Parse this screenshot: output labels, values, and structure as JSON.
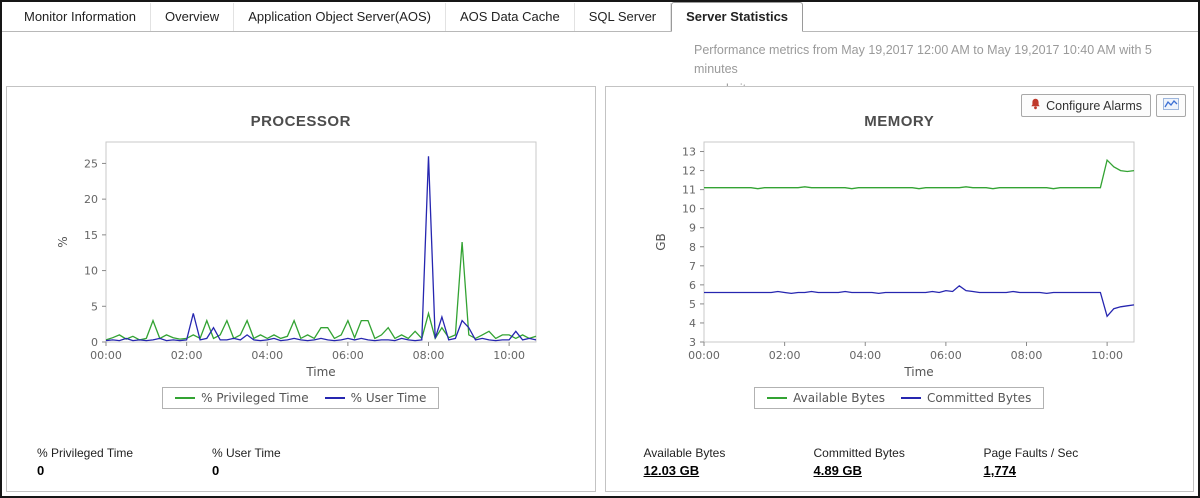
{
  "tabs": [
    {
      "label": "Monitor Information"
    },
    {
      "label": "Overview"
    },
    {
      "label": "Application Object Server(AOS)"
    },
    {
      "label": "AOS Data Cache"
    },
    {
      "label": "SQL Server"
    },
    {
      "label": "Server Statistics",
      "active": true
    }
  ],
  "header": {
    "subtitle_line1": "Performance metrics from May 19,2017 12:00 AM to May 19,2017 10:40 AM with 5 minutes",
    "subtitle_line2": "granularity"
  },
  "buttons": {
    "configure_alarms": "Configure Alarms"
  },
  "colors": {
    "series_green": "#33a333",
    "series_blue": "#2626b0",
    "alarm_icon_red": "#c0392b",
    "chart_icon_blue": "#3b6fd4"
  },
  "processor_panel": {
    "stats": [
      {
        "label": "% Privileged Time",
        "value": "0"
      },
      {
        "label": "% User Time",
        "value": "0"
      }
    ]
  },
  "memory_panel": {
    "stats": [
      {
        "label": "Available Bytes",
        "value": "12.03 GB"
      },
      {
        "label": "Committed Bytes",
        "value": "4.89 GB"
      },
      {
        "label": "Page Faults / Sec",
        "value": "1,774"
      }
    ]
  },
  "chart_data": [
    {
      "id": "processor",
      "type": "line",
      "title": "PROCESSOR",
      "xlabel": "Time",
      "ylabel": "%",
      "ylim": [
        0,
        28
      ],
      "yticks": [
        0,
        5,
        10,
        15,
        20,
        25
      ],
      "x_range": [
        0,
        640
      ],
      "xticks": [
        {
          "min": 0,
          "label": "00:00"
        },
        {
          "min": 120,
          "label": "02:00"
        },
        {
          "min": 240,
          "label": "04:00"
        },
        {
          "min": 360,
          "label": "06:00"
        },
        {
          "min": 480,
          "label": "08:00"
        },
        {
          "min": 600,
          "label": "10:00"
        }
      ],
      "x_minutes": [
        0,
        10,
        20,
        30,
        40,
        50,
        60,
        70,
        80,
        90,
        100,
        110,
        120,
        130,
        140,
        150,
        160,
        170,
        180,
        190,
        200,
        210,
        220,
        230,
        240,
        250,
        260,
        270,
        280,
        290,
        300,
        310,
        320,
        330,
        340,
        350,
        360,
        370,
        380,
        390,
        400,
        410,
        420,
        430,
        440,
        450,
        460,
        470,
        480,
        490,
        500,
        510,
        520,
        530,
        540,
        550,
        560,
        570,
        580,
        590,
        600,
        610,
        620,
        630,
        640
      ],
      "series": [
        {
          "name": "% Privileged Time",
          "color": "#33a333",
          "values": [
            0.3,
            0.6,
            1.0,
            0.4,
            0.8,
            0.3,
            0.5,
            3.0,
            0.5,
            1.0,
            0.6,
            0.4,
            0.5,
            1.0,
            0.5,
            3.0,
            0.5,
            1.0,
            3.0,
            0.5,
            1.0,
            3.0,
            0.5,
            1.0,
            0.5,
            1.0,
            0.5,
            0.8,
            3.0,
            0.5,
            1.0,
            0.5,
            2.0,
            2.0,
            0.5,
            1.0,
            3.0,
            0.6,
            3.0,
            3.0,
            0.5,
            1.0,
            2.0,
            0.5,
            1.0,
            0.5,
            1.5,
            0.5,
            4.0,
            0.5,
            2.0,
            0.6,
            1.0,
            14.0,
            1.0,
            0.5,
            1.0,
            1.5,
            0.5,
            1.0,
            1.0,
            0.5,
            1.0,
            0.5,
            0.8
          ]
        },
        {
          "name": "% User Time",
          "color": "#2626b0",
          "values": [
            0.2,
            0.3,
            0.2,
            0.5,
            0.2,
            0.3,
            0.2,
            0.3,
            0.5,
            0.2,
            0.3,
            0.2,
            0.3,
            4.0,
            0.3,
            0.5,
            2.0,
            0.3,
            0.3,
            0.5,
            0.3,
            1.0,
            0.3,
            0.2,
            0.3,
            0.5,
            0.2,
            0.3,
            0.5,
            0.3,
            0.2,
            0.3,
            0.5,
            0.3,
            0.2,
            0.3,
            0.5,
            0.3,
            0.5,
            0.3,
            0.2,
            0.3,
            0.3,
            0.2,
            0.5,
            0.3,
            0.2,
            0.3,
            26.0,
            0.5,
            3.5,
            0.3,
            0.5,
            3.0,
            2.0,
            0.3,
            0.5,
            0.3,
            0.2,
            0.3,
            0.3,
            1.5,
            0.3,
            0.5,
            0.3
          ]
        }
      ],
      "legend_position": "bottom",
      "grid": false
    },
    {
      "id": "memory",
      "type": "line",
      "title": "MEMORY",
      "xlabel": "Time",
      "ylabel": "GB",
      "ylim": [
        3,
        13.5
      ],
      "yticks": [
        3,
        4,
        5,
        6,
        7,
        8,
        9,
        10,
        11,
        12,
        13
      ],
      "x_range": [
        0,
        640
      ],
      "xticks": [
        {
          "min": 0,
          "label": "00:00"
        },
        {
          "min": 120,
          "label": "02:00"
        },
        {
          "min": 240,
          "label": "04:00"
        },
        {
          "min": 360,
          "label": "06:00"
        },
        {
          "min": 480,
          "label": "08:00"
        },
        {
          "min": 600,
          "label": "10:00"
        }
      ],
      "x_minutes": [
        0,
        10,
        20,
        30,
        40,
        50,
        60,
        70,
        80,
        90,
        100,
        110,
        120,
        130,
        140,
        150,
        160,
        170,
        180,
        190,
        200,
        210,
        220,
        230,
        240,
        250,
        260,
        270,
        280,
        290,
        300,
        310,
        320,
        330,
        340,
        350,
        360,
        370,
        380,
        390,
        400,
        410,
        420,
        430,
        440,
        450,
        460,
        470,
        480,
        490,
        500,
        510,
        520,
        530,
        540,
        550,
        560,
        570,
        580,
        590,
        600,
        610,
        620,
        630,
        640
      ],
      "series": [
        {
          "name": "Available Bytes",
          "color": "#33a333",
          "values": [
            11.1,
            11.1,
            11.1,
            11.1,
            11.1,
            11.1,
            11.1,
            11.1,
            11.05,
            11.1,
            11.1,
            11.1,
            11.1,
            11.1,
            11.1,
            11.15,
            11.1,
            11.1,
            11.1,
            11.1,
            11.1,
            11.1,
            11.05,
            11.1,
            11.1,
            11.1,
            11.1,
            11.1,
            11.1,
            11.1,
            11.1,
            11.1,
            11.05,
            11.1,
            11.1,
            11.1,
            11.1,
            11.1,
            11.1,
            11.15,
            11.1,
            11.1,
            11.1,
            11.05,
            11.1,
            11.1,
            11.1,
            11.1,
            11.1,
            11.1,
            11.1,
            11.1,
            11.05,
            11.1,
            11.1,
            11.1,
            11.1,
            11.1,
            11.1,
            11.1,
            12.55,
            12.2,
            12.0,
            11.95,
            12.0
          ]
        },
        {
          "name": "Committed Bytes",
          "color": "#2626b0",
          "values": [
            5.6,
            5.6,
            5.6,
            5.6,
            5.6,
            5.6,
            5.6,
            5.6,
            5.6,
            5.6,
            5.6,
            5.65,
            5.6,
            5.55,
            5.6,
            5.6,
            5.65,
            5.6,
            5.6,
            5.6,
            5.6,
            5.65,
            5.6,
            5.6,
            5.6,
            5.6,
            5.55,
            5.6,
            5.6,
            5.6,
            5.6,
            5.6,
            5.6,
            5.6,
            5.65,
            5.6,
            5.7,
            5.65,
            5.95,
            5.7,
            5.65,
            5.6,
            5.6,
            5.6,
            5.6,
            5.6,
            5.65,
            5.6,
            5.6,
            5.6,
            5.6,
            5.55,
            5.6,
            5.6,
            5.6,
            5.6,
            5.6,
            5.6,
            5.6,
            5.6,
            4.35,
            4.75,
            4.85,
            4.9,
            4.95
          ]
        }
      ],
      "legend_position": "bottom",
      "grid": false
    }
  ]
}
